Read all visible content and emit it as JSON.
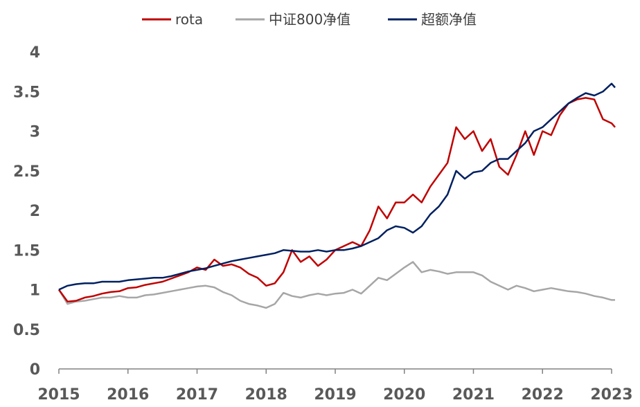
{
  "chart_data": {
    "type": "line",
    "x": [
      2015.0,
      2015.125,
      2015.25,
      2015.375,
      2015.5,
      2015.625,
      2015.75,
      2015.875,
      2016.0,
      2016.125,
      2016.25,
      2016.375,
      2016.5,
      2016.625,
      2016.75,
      2016.875,
      2017.0,
      2017.125,
      2017.25,
      2017.375,
      2017.5,
      2017.625,
      2017.75,
      2017.875,
      2018.0,
      2018.125,
      2018.25,
      2018.375,
      2018.5,
      2018.625,
      2018.75,
      2018.875,
      2019.0,
      2019.125,
      2019.25,
      2019.375,
      2019.5,
      2019.625,
      2019.75,
      2019.875,
      2020.0,
      2020.125,
      2020.25,
      2020.375,
      2020.5,
      2020.625,
      2020.75,
      2020.875,
      2021.0,
      2021.125,
      2021.25,
      2021.375,
      2021.5,
      2021.625,
      2021.75,
      2021.875,
      2022.0,
      2022.125,
      2022.25,
      2022.375,
      2022.5,
      2022.625,
      2022.75,
      2022.875,
      2023.0,
      2023.05
    ],
    "series": [
      {
        "name": "rota",
        "color": "#c00000",
        "values": [
          1.0,
          0.85,
          0.86,
          0.9,
          0.92,
          0.95,
          0.97,
          0.98,
          1.02,
          1.03,
          1.06,
          1.08,
          1.1,
          1.14,
          1.18,
          1.22,
          1.28,
          1.25,
          1.38,
          1.3,
          1.32,
          1.28,
          1.2,
          1.15,
          1.05,
          1.08,
          1.22,
          1.5,
          1.35,
          1.42,
          1.3,
          1.38,
          1.5,
          1.55,
          1.6,
          1.55,
          1.75,
          2.05,
          1.9,
          2.1,
          2.1,
          2.2,
          2.1,
          2.3,
          2.45,
          2.6,
          3.05,
          2.9,
          3.0,
          2.75,
          2.9,
          2.55,
          2.45,
          2.7,
          3.0,
          2.7,
          3.0,
          2.95,
          3.2,
          3.35,
          3.4,
          3.42,
          3.4,
          3.15,
          3.1,
          3.05
        ]
      },
      {
        "name": "中证800净值",
        "color": "#a6a6a6",
        "values": [
          1.0,
          0.82,
          0.85,
          0.86,
          0.88,
          0.9,
          0.9,
          0.92,
          0.9,
          0.9,
          0.93,
          0.94,
          0.96,
          0.98,
          1.0,
          1.02,
          1.04,
          1.05,
          1.03,
          0.97,
          0.93,
          0.86,
          0.82,
          0.8,
          0.77,
          0.82,
          0.96,
          0.92,
          0.9,
          0.93,
          0.95,
          0.93,
          0.95,
          0.96,
          1.0,
          0.95,
          1.05,
          1.15,
          1.12,
          1.2,
          1.28,
          1.35,
          1.22,
          1.25,
          1.23,
          1.2,
          1.22,
          1.22,
          1.22,
          1.18,
          1.1,
          1.05,
          1.0,
          1.05,
          1.02,
          0.98,
          1.0,
          1.02,
          1.0,
          0.98,
          0.97,
          0.95,
          0.92,
          0.9,
          0.87,
          0.87
        ]
      },
      {
        "name": "超额净值",
        "color": "#002060",
        "values": [
          1.0,
          1.05,
          1.07,
          1.08,
          1.08,
          1.1,
          1.1,
          1.1,
          1.12,
          1.13,
          1.14,
          1.15,
          1.15,
          1.17,
          1.2,
          1.23,
          1.25,
          1.27,
          1.3,
          1.33,
          1.36,
          1.38,
          1.4,
          1.42,
          1.44,
          1.46,
          1.5,
          1.49,
          1.48,
          1.48,
          1.5,
          1.48,
          1.5,
          1.5,
          1.52,
          1.55,
          1.6,
          1.65,
          1.75,
          1.8,
          1.78,
          1.72,
          1.8,
          1.95,
          2.05,
          2.2,
          2.5,
          2.4,
          2.48,
          2.5,
          2.6,
          2.65,
          2.65,
          2.75,
          2.85,
          3.0,
          3.05,
          3.15,
          3.25,
          3.35,
          3.42,
          3.48,
          3.45,
          3.5,
          3.6,
          3.55
        ]
      }
    ],
    "xlim": [
      2015,
      2023
    ],
    "xticks": [
      2015,
      2016,
      2017,
      2018,
      2019,
      2020,
      2021,
      2022,
      2023
    ],
    "ylim": [
      0,
      4
    ],
    "yticks": [
      0,
      0.5,
      1,
      1.5,
      2,
      2.5,
      3,
      3.5,
      4
    ],
    "legend": "top"
  }
}
